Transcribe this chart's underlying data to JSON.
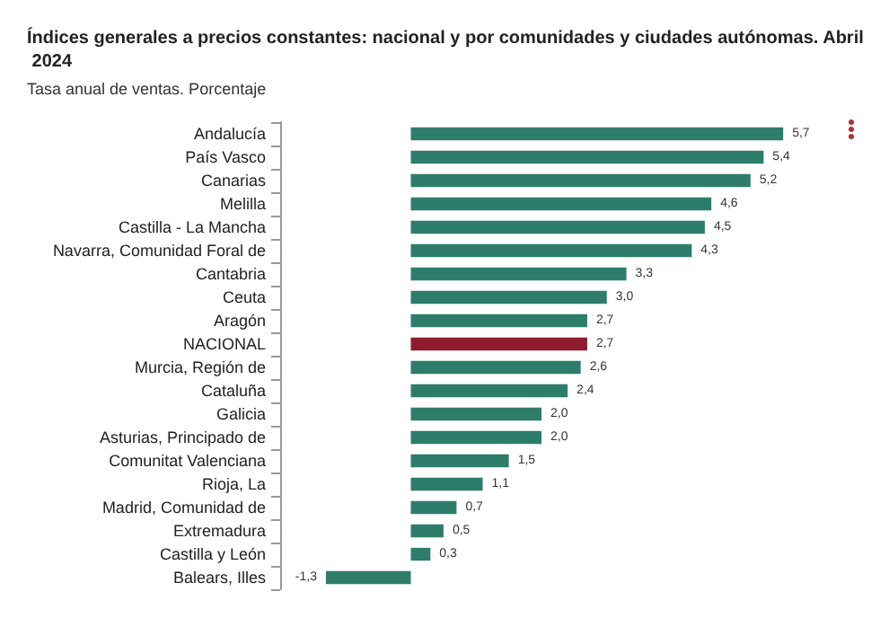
{
  "chart_data": {
    "type": "bar",
    "orientation": "horizontal",
    "title": "Índices generales a precios constantes: nacional y por comunidades y ciudades autónomas. Abril 2024",
    "subtitle": "Tasa anual de ventas. Porcentaje",
    "categories": [
      "Andalucía",
      "País Vasco",
      "Canarias",
      "Melilla",
      "Castilla - La Mancha",
      "Navarra, Comunidad Foral de",
      "Cantabria",
      "Ceuta",
      "Aragón",
      "NACIONAL",
      "Murcia, Región de",
      "Cataluña",
      "Galicia",
      "Asturias, Principado de",
      "Comunitat Valenciana",
      "Rioja, La",
      "Madrid, Comunidad de",
      "Extremadura",
      "Castilla y León",
      "Balears, Illes"
    ],
    "values": [
      5.7,
      5.4,
      5.2,
      4.6,
      4.5,
      4.3,
      3.3,
      3.0,
      2.7,
      2.7,
      2.6,
      2.4,
      2.0,
      2.0,
      1.5,
      1.1,
      0.7,
      0.5,
      0.3,
      -1.3
    ],
    "value_labels": [
      "5,7",
      "5,4",
      "5,2",
      "4,6",
      "4,5",
      "4,3",
      "3,3",
      "3,0",
      "2,7",
      "2,7",
      "2,6",
      "2,4",
      "2,0",
      "2,0",
      "1,5",
      "1,1",
      "0,7",
      "0,5",
      "0,3",
      "-1,3"
    ],
    "colors": [
      "#2e7d6b",
      "#2e7d6b",
      "#2e7d6b",
      "#2e7d6b",
      "#2e7d6b",
      "#2e7d6b",
      "#2e7d6b",
      "#2e7d6b",
      "#2e7d6b",
      "#8e1b2e",
      "#2e7d6b",
      "#2e7d6b",
      "#2e7d6b",
      "#2e7d6b",
      "#2e7d6b",
      "#2e7d6b",
      "#2e7d6b",
      "#2e7d6b",
      "#2e7d6b",
      "#2e7d6b"
    ],
    "tick_labels": "y",
    "grid": false
  }
}
